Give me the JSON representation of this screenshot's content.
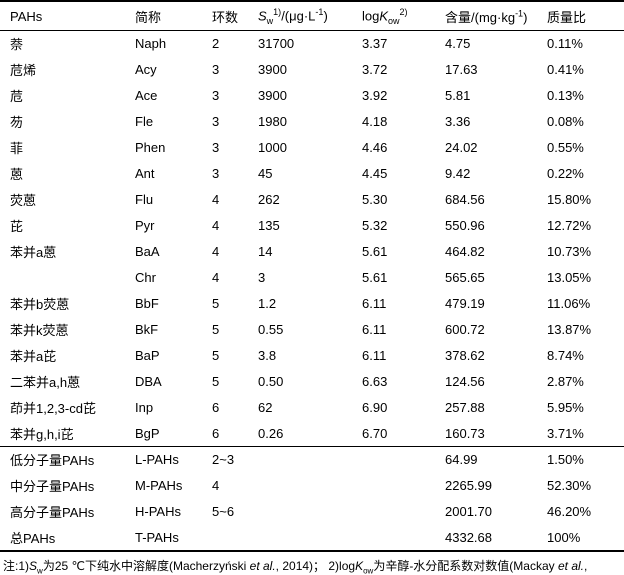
{
  "table": {
    "headers": {
      "pahs": "PAHs",
      "abbr": "简称",
      "rings": "环数",
      "sw_s": "S",
      "sw_sub": "w",
      "sw_sup": "1)",
      "sw_unit_pre": "/(μg·L",
      "sw_unit_sup": "-1",
      "sw_unit_post": ")",
      "log_pre": "log",
      "log_k": "K",
      "log_sub": "ow",
      "log_sup": "2)",
      "amount_pre": "含量/(mg·kg",
      "amount_sup": "-1",
      "amount_post": ")",
      "pct": "质量比"
    },
    "rows": [
      {
        "name": "萘",
        "abbr": "Naph",
        "rings": "2",
        "sw": "31700",
        "logkow": "3.37",
        "amount": "4.75",
        "pct": "0.11%"
      },
      {
        "name": "苊烯",
        "abbr": "Acy",
        "rings": "3",
        "sw": "3900",
        "logkow": "3.72",
        "amount": "17.63",
        "pct": "0.41%"
      },
      {
        "name": "苊",
        "abbr": "Ace",
        "rings": "3",
        "sw": "3900",
        "logkow": "3.92",
        "amount": "5.81",
        "pct": "0.13%"
      },
      {
        "name": "芴",
        "abbr": "Fle",
        "rings": "3",
        "sw": "1980",
        "logkow": "4.18",
        "amount": "3.36",
        "pct": "0.08%"
      },
      {
        "name": "菲",
        "abbr": "Phen",
        "rings": "3",
        "sw": "1000",
        "logkow": "4.46",
        "amount": "24.02",
        "pct": "0.55%"
      },
      {
        "name": "蒽",
        "abbr": "Ant",
        "rings": "3",
        "sw": "45",
        "logkow": "4.45",
        "amount": "9.42",
        "pct": "0.22%"
      },
      {
        "name": "荧蒽",
        "abbr": "Flu",
        "rings": "4",
        "sw": "262",
        "logkow": "5.30",
        "amount": "684.56",
        "pct": "15.80%"
      },
      {
        "name": "芘",
        "abbr": "Pyr",
        "rings": "4",
        "sw": "135",
        "logkow": "5.32",
        "amount": "550.96",
        "pct": "12.72%"
      },
      {
        "name": "苯并a蒽",
        "abbr": "BaA",
        "rings": "4",
        "sw": "14",
        "logkow": "5.61",
        "amount": "464.82",
        "pct": "10.73%"
      },
      {
        "name": "",
        "abbr": "Chr",
        "rings": "4",
        "sw": "3",
        "logkow": "5.61",
        "amount": "565.65",
        "pct": "13.05%"
      },
      {
        "name": "苯并b荧蒽",
        "abbr": "BbF",
        "rings": "5",
        "sw": "1.2",
        "logkow": "6.11",
        "amount": "479.19",
        "pct": "11.06%"
      },
      {
        "name": "苯并k荧蒽",
        "abbr": "BkF",
        "rings": "5",
        "sw": "0.55",
        "logkow": "6.11",
        "amount": "600.72",
        "pct": "13.87%"
      },
      {
        "name": "苯并a芘",
        "abbr": "BaP",
        "rings": "5",
        "sw": "3.8",
        "logkow": "6.11",
        "amount": "378.62",
        "pct": "8.74%"
      },
      {
        "name": "二苯并a,h蒽",
        "abbr": "DBA",
        "rings": "5",
        "sw": "0.50",
        "logkow": "6.63",
        "amount": "124.56",
        "pct": "2.87%"
      },
      {
        "name": "茚并1,2,3-cd芘",
        "abbr": "Inp",
        "rings": "6",
        "sw": "62",
        "logkow": "6.90",
        "amount": "257.88",
        "pct": "5.95%"
      },
      {
        "name": "苯并g,h,i芘",
        "abbr": "BgP",
        "rings": "6",
        "sw": "0.26",
        "logkow": "6.70",
        "amount": "160.73",
        "pct": "3.71%"
      }
    ],
    "summary_rows": [
      {
        "name": "低分子量PAHs",
        "abbr": "L-PAHs",
        "rings": "2~3",
        "sw": "",
        "logkow": "",
        "amount": "64.99",
        "pct": "1.50%"
      },
      {
        "name": "中分子量PAHs",
        "abbr": "M-PAHs",
        "rings": "4",
        "sw": "",
        "logkow": "",
        "amount": "2265.99",
        "pct": "52.30%"
      },
      {
        "name": "高分子量PAHs",
        "abbr": "H-PAHs",
        "rings": "5~6",
        "sw": "",
        "logkow": "",
        "amount": "2001.70",
        "pct": "46.20%"
      },
      {
        "name": "总PAHs",
        "abbr": "T-PAHs",
        "rings": "",
        "sw": "",
        "logkow": "",
        "amount": "4332.68",
        "pct": "100%"
      }
    ]
  },
  "footnote": {
    "prefix": "注:1)",
    "sw_s": "S",
    "sw_sub": "w",
    "text1": "为25 ℃下纯水中溶解度(Macherzyński ",
    "etal1": "et al.",
    "text2": ", 2014)； 2)log",
    "k": "K",
    "k_sub": "ow",
    "text3": "为辛醇-水分配系数对数值(Mackay ",
    "etal2": "et al.",
    "text4": ","
  }
}
